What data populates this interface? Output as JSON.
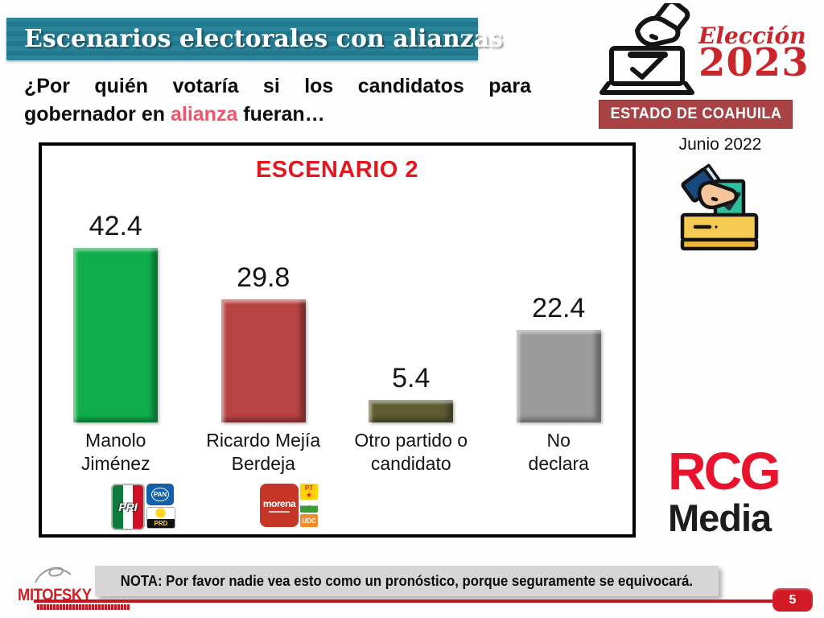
{
  "header": {
    "title": "Escenarios electorales con alianzas",
    "question_line1": "¿Por quién votaría si los candidatos para",
    "question_line2_prefix": "gobernador en ",
    "question_highlight": "alianza",
    "question_line2_suffix": " fueran…"
  },
  "election_badge": {
    "label": "Elección",
    "year": "2023",
    "state": "ESTADO DE COAHUILA",
    "date": "Junio 2022"
  },
  "chart_data": {
    "type": "bar",
    "title": "ESCENARIO 2",
    "categories": [
      "Manolo Jiménez",
      "Ricardo Mejía Berdeja",
      "Otro partido o candidato",
      "No declara"
    ],
    "values": [
      42.4,
      29.8,
      5.4,
      22.4
    ],
    "value_labels": [
      "42.4",
      "29.8",
      "5.4",
      "22.4"
    ],
    "category_lines": [
      [
        "Manolo",
        "Jiménez"
      ],
      [
        "Ricardo Mejía",
        "Berdeja"
      ],
      [
        "Otro partido o",
        "candidato"
      ],
      [
        "No",
        "declara"
      ]
    ],
    "bar_colors": [
      "#10AD4B",
      "#B84343",
      "#5F5C33",
      "#9B9B9B"
    ],
    "ylim": [
      0,
      45
    ],
    "grid": "off",
    "legend": "none",
    "coalitions": [
      {
        "parties": [
          "PRI",
          "PAN",
          "PRD"
        ]
      },
      {
        "parties": [
          "morena",
          "PT",
          "UDC"
        ]
      }
    ]
  },
  "branding": {
    "rcg": "RCG",
    "media": "Media",
    "mitofsky": "MITOFSKY"
  },
  "footer": {
    "note": "NOTA: Por favor nadie vea esto como un pronóstico, porque seguramente se equivocará.",
    "page_number": "5"
  },
  "colors": {
    "banner_teal": "#217D95",
    "highlight_pink": "#F2546C",
    "chart_title_red": "#E4161F",
    "brand_red": "#C9252B",
    "estado_banner_bg": "#A84244",
    "footer_line_red": "#C81420",
    "rcg_red": "#E8142D",
    "note_bg": "#D6D6D6"
  }
}
